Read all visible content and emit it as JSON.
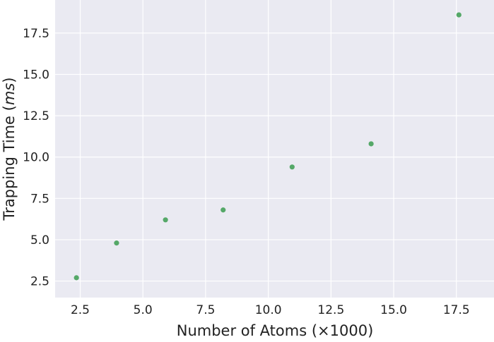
{
  "chart_data": {
    "type": "scatter",
    "title": "",
    "xlabel": "Number of Atoms (×1000)",
    "ylabel": "Trapping Time (ms)",
    "ylabel_main": "Trapping Time (",
    "ylabel_unit": "ms",
    "ylabel_end": ")",
    "xlim": [
      1.5,
      19.0
    ],
    "ylim": [
      1.5,
      19.5
    ],
    "xticks": [
      2.5,
      5.0,
      7.5,
      10.0,
      12.5,
      15.0,
      17.5
    ],
    "xtick_labels": [
      "2.5",
      "5.0",
      "7.5",
      "10.0",
      "12.5",
      "15.0",
      "17.5"
    ],
    "yticks": [
      2.5,
      5.0,
      7.5,
      10.0,
      12.5,
      15.0,
      17.5
    ],
    "ytick_labels": [
      "2.5",
      "5.0",
      "7.5",
      "10.0",
      "12.5",
      "15.0",
      "17.5"
    ],
    "grid": true,
    "background_color": "#EAEAF2",
    "grid_color": "#FFFFFF",
    "marker_color": "#55A868",
    "points": [
      {
        "x": 2.35,
        "y": 2.7
      },
      {
        "x": 3.95,
        "y": 4.8
      },
      {
        "x": 5.9,
        "y": 6.2
      },
      {
        "x": 8.2,
        "y": 6.8
      },
      {
        "x": 10.95,
        "y": 9.4
      },
      {
        "x": 14.1,
        "y": 10.8
      },
      {
        "x": 17.6,
        "y": 18.6
      }
    ]
  }
}
